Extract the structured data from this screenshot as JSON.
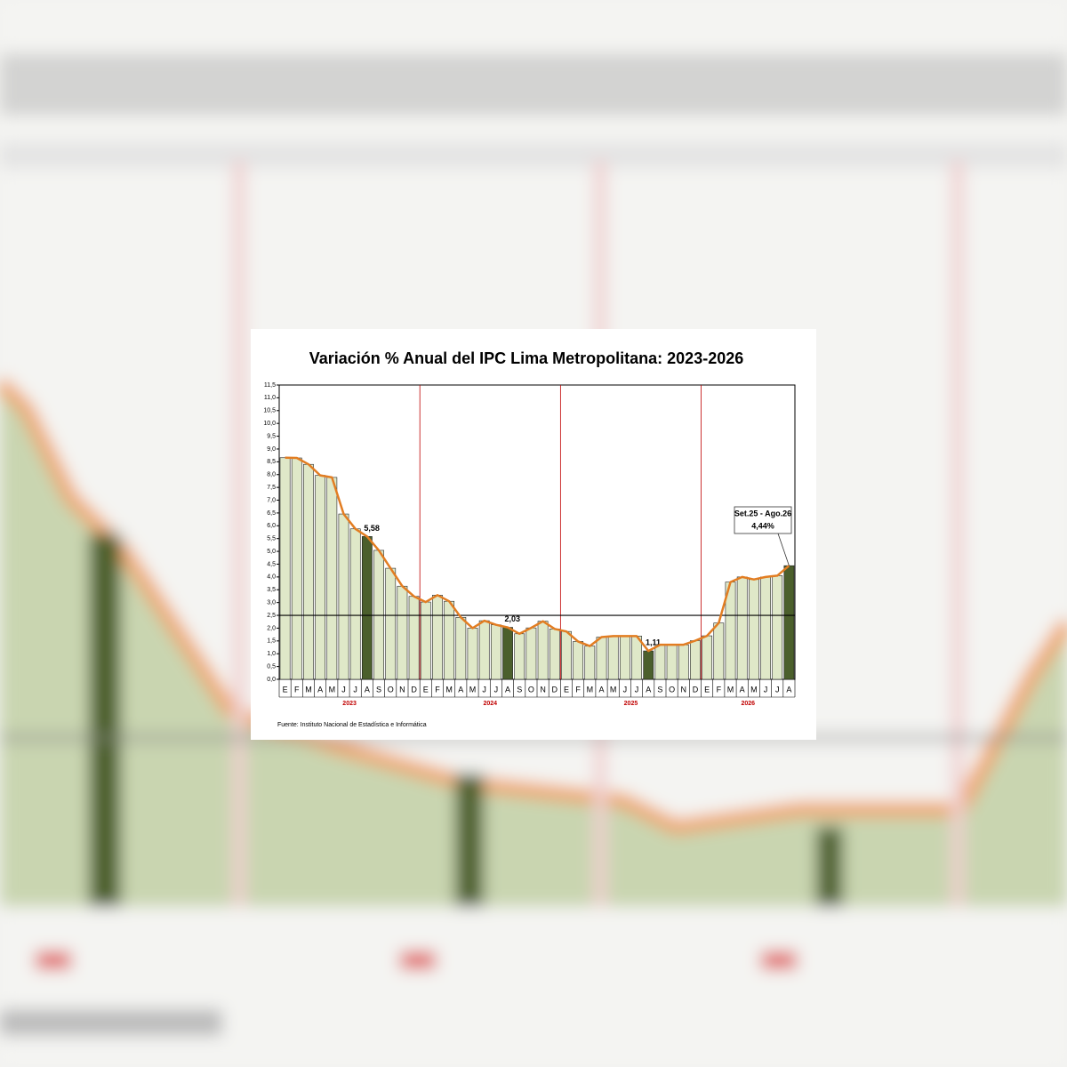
{
  "chart_data": {
    "type": "bar_line",
    "title": "Variación % Anual del IPC Lima Metropolitana:  2023-2026",
    "source": "Fuente: Instituto Nacional de Estadística e Informática",
    "categories": [
      "E",
      "F",
      "M",
      "A",
      "M",
      "J",
      "J",
      "A",
      "S",
      "O",
      "N",
      "D",
      "E",
      "F",
      "M",
      "A",
      "M",
      "J",
      "J",
      "A",
      "S",
      "O",
      "N",
      "D",
      "E",
      "F",
      "M",
      "A",
      "M",
      "J",
      "J",
      "A",
      "S",
      "O",
      "N",
      "D",
      "E",
      "F",
      "M",
      "A",
      "M",
      "J",
      "J",
      "A"
    ],
    "groups": [
      "2023",
      "2024",
      "2025",
      "2026"
    ],
    "values": [
      8.66,
      8.65,
      8.4,
      7.97,
      7.89,
      6.46,
      5.88,
      5.58,
      5.04,
      4.34,
      3.64,
      3.24,
      3.02,
      3.29,
      3.05,
      2.42,
      2.0,
      2.29,
      2.13,
      2.03,
      1.78,
      2.01,
      2.27,
      1.97,
      1.87,
      1.48,
      1.3,
      1.65,
      1.69,
      1.69,
      1.69,
      1.11,
      1.35,
      1.35,
      1.35,
      1.51,
      1.7,
      2.2,
      3.8,
      4.0,
      3.9,
      4.0,
      4.05,
      4.44
    ],
    "value_labels": [
      null,
      null,
      null,
      null,
      null,
      null,
      null,
      "5,58",
      null,
      null,
      null,
      null,
      null,
      null,
      null,
      null,
      null,
      null,
      null,
      "2,03",
      null,
      null,
      null,
      null,
      null,
      null,
      null,
      null,
      null,
      null,
      null,
      "1,11",
      null,
      null,
      null,
      null,
      null,
      null,
      null,
      null,
      null,
      null,
      null,
      "4,44%"
    ],
    "callout": "Set.25 - Ago.26",
    "highlight": [
      7,
      19,
      31,
      43
    ],
    "bar_color": "#dfe8c8",
    "highlight_color": "#4b5f2c",
    "line_color": "#e27d22",
    "reference_line": 2.5,
    "ylim": [
      0,
      11.5
    ],
    "yticks": [
      {
        "value": 0,
        "label": "0,0"
      },
      {
        "value": 0.5,
        "label": "0,5"
      },
      {
        "value": 1,
        "label": "1,0"
      },
      {
        "value": 1.5,
        "label": "1,5"
      },
      {
        "value": 2,
        "label": "2,0"
      },
      {
        "value": 2.5,
        "label": "2,5"
      },
      {
        "value": 3,
        "label": "3,0"
      },
      {
        "value": 3.5,
        "label": "3,5"
      },
      {
        "value": 4,
        "label": "4,0"
      },
      {
        "value": 4.5,
        "label": "4,5"
      },
      {
        "value": 5,
        "label": "5,0"
      },
      {
        "value": 5.5,
        "label": "5,5"
      },
      {
        "value": 6,
        "label": "6,0"
      },
      {
        "value": 6.5,
        "label": "6,5"
      },
      {
        "value": 7,
        "label": "7,0"
      },
      {
        "value": 7.5,
        "label": "7,5"
      },
      {
        "value": 8,
        "label": "8,0"
      },
      {
        "value": 8.5,
        "label": "8,5"
      },
      {
        "value": 9,
        "label": "9,0"
      },
      {
        "value": 9.5,
        "label": "9,5"
      },
      {
        "value": 10,
        "label": "10,0"
      },
      {
        "value": 10.5,
        "label": "10,5"
      },
      {
        "value": 11,
        "label": "11,0"
      },
      {
        "value": 11.5,
        "label": "11,5"
      }
    ]
  }
}
